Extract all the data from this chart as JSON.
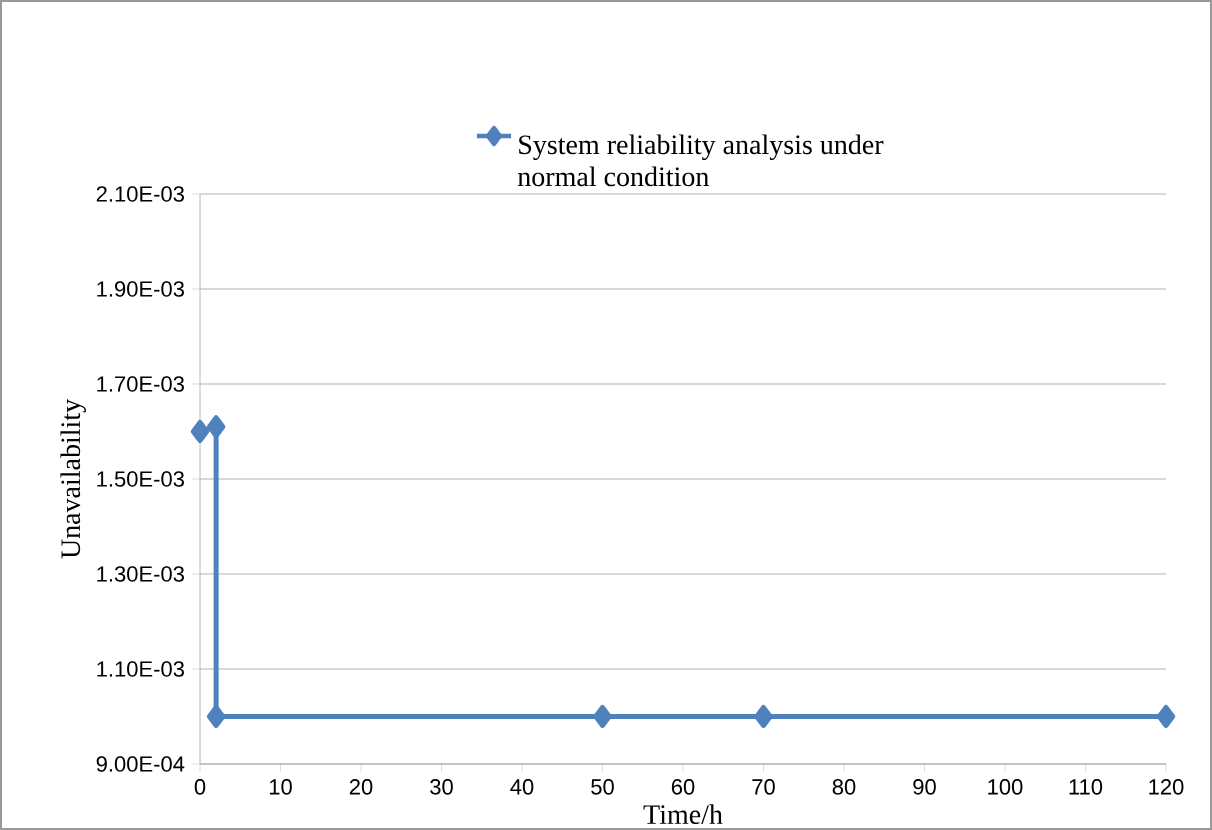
{
  "chart_data": {
    "type": "line",
    "xlabel": "Time/h",
    "ylabel": "Unavailability",
    "x": [
      0,
      2,
      2,
      50,
      70,
      120
    ],
    "series": [
      {
        "name": "System reliability analysis under normal condition",
        "color": "#4f81bd",
        "values": [
          0.0016,
          0.00161,
          0.001,
          0.001,
          0.001,
          0.001
        ]
      }
    ],
    "xlim": [
      0,
      120
    ],
    "xticks": [
      0,
      10,
      20,
      30,
      40,
      50,
      60,
      70,
      80,
      90,
      100,
      110,
      120
    ],
    "ylim": [
      0.0009,
      0.0021
    ],
    "yticks": [
      {
        "value": 0.0009,
        "label": "9.00E-04"
      },
      {
        "value": 0.0011,
        "label": "1.10E-03"
      },
      {
        "value": 0.0013,
        "label": "1.30E-03"
      },
      {
        "value": 0.0015,
        "label": "1.50E-03"
      },
      {
        "value": 0.0017,
        "label": "1.70E-03"
      },
      {
        "value": 0.0019,
        "label": "1.90E-03"
      },
      {
        "value": 0.0021,
        "label": "2.10E-03"
      }
    ],
    "grid": "y",
    "legend": "top",
    "marker": "diamond",
    "line_style": "solid"
  }
}
